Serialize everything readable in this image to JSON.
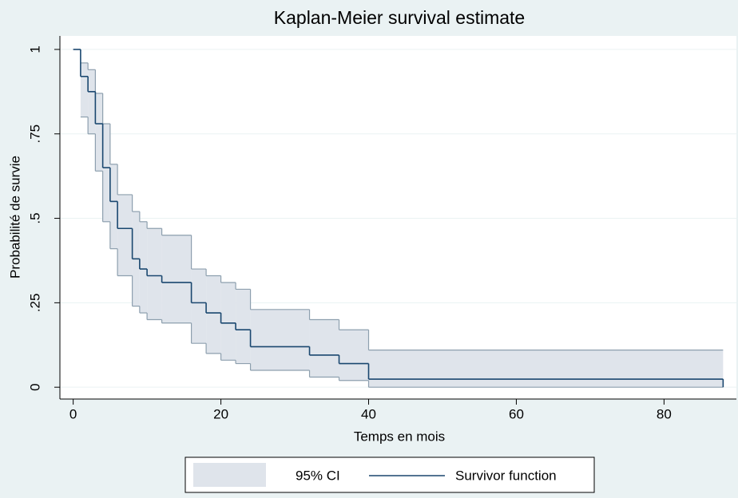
{
  "chart_data": {
    "type": "step",
    "title": "Kaplan-Meier survival estimate",
    "x_label": "Temps en mois",
    "y_label": "Probabilité de survie",
    "x": [
      0,
      1,
      2,
      3,
      4,
      5,
      6,
      8,
      9,
      10,
      12,
      16,
      18,
      20,
      22,
      24,
      32,
      36,
      40,
      88
    ],
    "series": [
      {
        "name": "Survivor function",
        "color": "#1a476f",
        "values": [
          1,
          0.92,
          0.875,
          0.78,
          0.65,
          0.55,
          0.47,
          0.38,
          0.35,
          0.33,
          0.31,
          0.25,
          0.22,
          0.19,
          0.17,
          0.12,
          0.095,
          0.07,
          0.024,
          0
        ]
      }
    ],
    "band": {
      "name": "95% CI",
      "color": "#dfe4eb",
      "edge_color": "#8d9fae",
      "lower": [
        null,
        0.8,
        0.75,
        0.64,
        0.49,
        0.41,
        0.33,
        0.24,
        0.22,
        0.2,
        0.19,
        0.13,
        0.1,
        0.08,
        0.07,
        0.05,
        0.03,
        0.02,
        0,
        0
      ],
      "upper": [
        null,
        0.96,
        0.94,
        0.87,
        0.78,
        0.66,
        0.57,
        0.52,
        0.49,
        0.47,
        0.45,
        0.35,
        0.33,
        0.31,
        0.29,
        0.23,
        0.2,
        0.17,
        0.11,
        0.11
      ]
    },
    "xlim": [
      -1.8,
      89.8
    ],
    "ylim": [
      -0.035,
      1.04
    ],
    "xticks": [
      0,
      20,
      40,
      60,
      80
    ],
    "yticks": [
      0,
      {
        "value": 0.25,
        "label": ".25"
      },
      {
        "value": 0.5,
        "label": ".5"
      },
      {
        "value": 0.75,
        "label": ".75"
      },
      1
    ],
    "grid": true
  }
}
